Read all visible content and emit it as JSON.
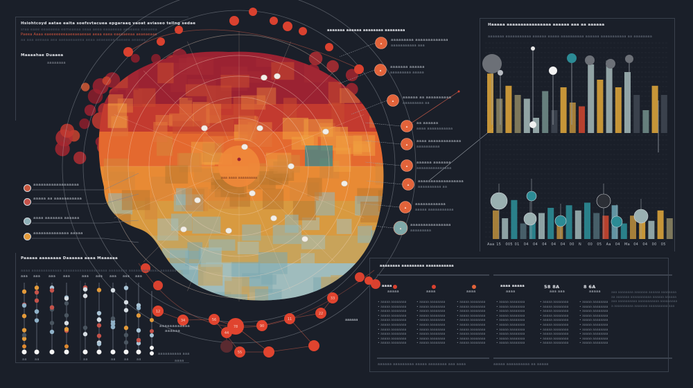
{
  "left_header": {
    "title": "Hsiohtcoyd aatae eaita soefsvtacuea epgaraaq vaoat aviaseo tellng sedae",
    "subtitle_1": "sraa eaee eeaeeeea eemeaeaa seaa aeea eaaaeeaa aeeeaea eaeaeea",
    "subtitle_2": "Paeea Aaaa eaeeeeeeeaaeeaeaeeae aeaa eaea eaeaaeeaa aeaeaeaae",
    "subtitle_3": "aa aaa aeeaaa aea aaeaaeaaeea aeaa aeaeaeae aaeaea aeaeae",
    "section": "Maaaahae Duaaea",
    "annot": "aaaaaaaa"
  },
  "legend_items": [
    {
      "label": "aaaaaaaaaaaaaaaaaa",
      "sub": "aaaaaaaaaa",
      "color": "#c9583f"
    },
    {
      "label": "aaaaa aa aaaaaaaaaaa",
      "sub": "",
      "color": "#c5524a"
    },
    {
      "label": "aaaa aaaaaaa aaaaaa",
      "sub": "",
      "color": "#8fb1b8"
    },
    {
      "label": "aaaaaaaaaaaaaa aaaaa",
      "sub": "",
      "color": "#e39a3a"
    }
  ],
  "radial": {
    "title": "aaaaaaaa aaaaaaaaaa aaaa aaaaaaaa",
    "center_label": "aaa aaaa aaaaaaaaa",
    "markers": [
      "12",
      "34",
      "56",
      "78",
      "90",
      "11",
      "22",
      "33",
      "44",
      "55"
    ]
  },
  "callouts": {
    "title": "aaaaaaa aaaaaa aaaaaaaa aaaaaaaa",
    "items": [
      {
        "line1": "aaaaaaaaa aaaaaaaaaaaaa",
        "line2": "aaaaaaaaaaa aaa",
        "color": "#e2633a"
      },
      {
        "line1": "aaaaaaa aaaaaa",
        "line2": "aaaaaaaaa aaaaa",
        "color": "#e2633a"
      },
      {
        "line1": "aaaaaa aa aaaaaaaaaa",
        "line2": "aaaaaaaaa aa",
        "color": "#e2633a"
      },
      {
        "line1": "aa aaaaaa",
        "line2": "aaaa aaaaaaaaaaa",
        "color": "#e2633a"
      },
      {
        "line1": "aaaa aaaaaaaaaaaaa",
        "line2": "aaaaaaaaaa",
        "color": "#e2633a"
      },
      {
        "line1": "aaaaaa aaaaaaa",
        "line2": "aaaaaaaaaaaaaaa",
        "color": "#e2633a"
      },
      {
        "line1": "aaaaaaaaaaaaaaaaaa",
        "line2": "aaaaaaaaaa aa",
        "color": "#e2633a"
      },
      {
        "line1": "aaaaaaaaaaaa",
        "line2": "aaaaa aaaaaaaaaaa",
        "color": "#e2633a"
      },
      {
        "line1": "aaaaaaaaaaaaaaaa",
        "line2": "aaaaaaaaa",
        "color": "#7fa8a8"
      }
    ]
  },
  "bar_panel": {
    "title": "Haaaaa aaaaaaaaaaaaaaaa aaaaaa aaa aa aaaaaa",
    "subtitle": "aaaaaaa aaaaaaaaaaa aaaaaa aaaaa aaaaaaaaaa aaaaaa aaaaaaaaaaa aa aaaaaaaa",
    "axis_labels": [
      "Aaa",
      "15",
      "005",
      "01",
      "04",
      "04",
      "04",
      "04",
      "04",
      "00",
      "N",
      "00",
      "05",
      "Aa",
      "04",
      "Ma",
      "04",
      "04",
      "00",
      "05"
    ]
  },
  "chart_data": [
    {
      "type": "bar",
      "title": "Haaaaa aaaaaaaaaaaaaaaa aaaaaa aaa aa aaaaaa",
      "series": [
        {
          "name": "upper",
          "values": [
            0.78,
            0.45,
            0.62,
            0.5,
            0.45,
            0.2,
            0.55,
            0.3,
            0.6,
            0.4,
            0.35,
            0.9,
            0.7,
            0.95,
            0.6,
            0.8,
            0.5,
            0.3,
            0.62,
            0.5
          ]
        }
      ],
      "colors": [
        "#d9a23a",
        "#8a8260",
        "#d9a23a",
        "#8a8260",
        "#9eb2b3",
        "#9eb2b3",
        "#6f8a86",
        "#3e4550",
        "#d9a23a",
        "#b58a3c",
        "#c9452f",
        "#9eb2b3",
        "#d9a23a",
        "#9eb2b3",
        "#d9a23a",
        "#9eb2b3",
        "#3e4550",
        "#6f8a86",
        "#d9a23a",
        "#3e4550"
      ]
    },
    {
      "type": "bar",
      "title": "lower",
      "series": [
        {
          "name": "lower",
          "values": [
            0.55,
            0.4,
            0.75,
            0.3,
            0.45,
            0.5,
            0.6,
            0.4,
            0.65,
            0.55,
            0.7,
            0.5,
            0.45,
            0.65,
            0.3,
            0.45,
            0.5,
            0.35,
            0.55,
            0.4
          ]
        }
      ],
      "colors": [
        "#b58a3c",
        "#9ab0b1",
        "#2c8b95",
        "#4c6670",
        "#2c8b95",
        "#9ab0b1",
        "#2c8b95",
        "#b58a3c",
        "#2c8b95",
        "#9ab0b1",
        "#2c8b95",
        "#4c6670",
        "#c9452f",
        "#6aa1b0",
        "#2c8b95",
        "#b58a3c",
        "#d9a23a",
        "#9ab0b1",
        "#d9a23a",
        "#8a8260"
      ]
    }
  ],
  "dot_panel": {
    "title": "Paaaaa aaaaaaaa Daaaaaa aaaa Maaaaaa",
    "subtitle": "aaaa aaaaaaaaaaaaa aaaaaaaaaaaaaaaaaaa aaaaaaaa aaaaaaaaaaaaa aaaaaaa",
    "columns": [
      "aaa",
      "aaa",
      "aaa",
      "aaa",
      "aaa",
      "aaa",
      "aaa",
      "aaa",
      "aaa"
    ],
    "footers": [
      "aa",
      "aa",
      "",
      "",
      "aa",
      "",
      "aa",
      "aa",
      "aa"
    ],
    "side_label_1": "aaaaaaaaaaaa",
    "side_label_2": "aaaaaa",
    "side_label_3": "aaaaaaaaaa aaa",
    "side_label_4": "aaaa"
  },
  "table_panel": {
    "title": "aaaaaaaa aaaaaaaaa aaaaaaaaaaa",
    "columns": [
      {
        "head": "aaaa",
        "sub": "aaaaa",
        "icon_color": "#d9412f"
      },
      {
        "head": "",
        "sub": "aaaa",
        "icon_color": "#d9412f"
      },
      {
        "head": "",
        "sub": "aaaa",
        "icon_color": "#e2633a"
      },
      {
        "head": "aaaa aaaaa",
        "sub": "aaaa",
        "icon_color": ""
      },
      {
        "head": "58 8A",
        "sub": "aaa aaa",
        "icon_color": ""
      },
      {
        "head": "8 6A",
        "sub": "aaaaa",
        "icon_color": ""
      }
    ],
    "row_text": "aaaaa aaaaaaaa",
    "footer_1": "aaaaaa aaaaaaaaa aaaaa aaaaaaaa aaa aaaa",
    "footer_2": "aaaaa aaaaaaaaaa aa aaaaa",
    "paragraph": "aaa aaaaaaaa aaaaaaa aaaaaa aaaaaaaaaa aaaaaaa aaaaaaaaaaa aaaaaa aaaaaaaaa aaaaaaaaaa aaaaaaaaaaa aaaaaaaaaa aaaaaaaaaa aaaaaaa aaaaaaaaaa aaa"
  },
  "colors": {
    "background": "#1a1f29",
    "accent_red": "#d9412f",
    "accent_orange": "#e2633a",
    "teal": "#2c8b95",
    "gold": "#d9a23a"
  }
}
